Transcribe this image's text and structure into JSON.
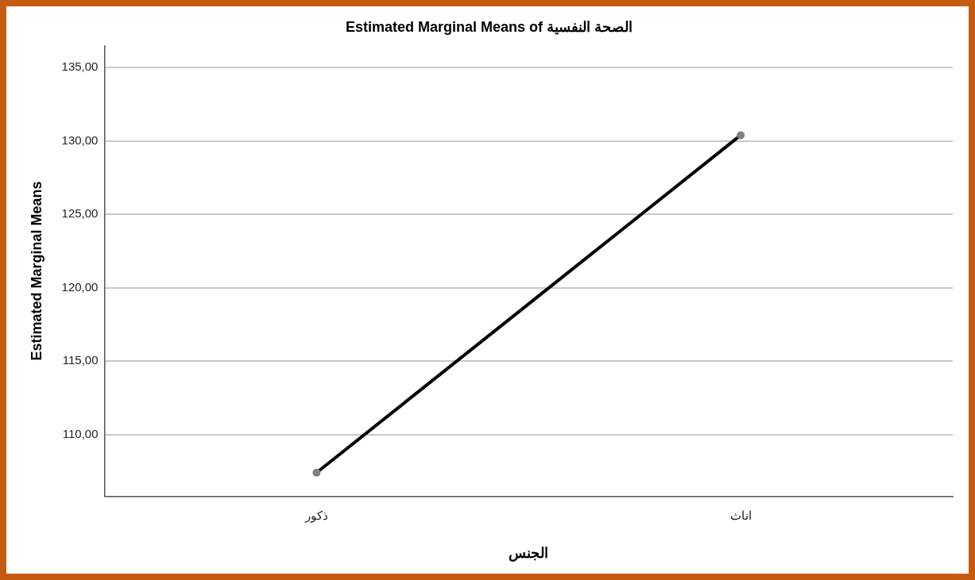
{
  "chart_data": {
    "type": "line",
    "title": "Estimated Marginal Means of الصحة النفسية",
    "xlabel": "الجنس",
    "ylabel": "Estimated Marginal Means",
    "categories": [
      "ذكور",
      "اناث"
    ],
    "series": [
      {
        "color": "#000000",
        "values": [
          107.4,
          130.4
        ]
      }
    ],
    "ylim": [
      105.8,
      136.5
    ],
    "yticks": [
      {
        "value": 110,
        "label": "110,00"
      },
      {
        "value": 115,
        "label": "115,00"
      },
      {
        "value": 120,
        "label": "120,00"
      },
      {
        "value": 125,
        "label": "125,00"
      },
      {
        "value": 130,
        "label": "130,00"
      },
      {
        "value": 135,
        "label": "135,00"
      }
    ],
    "grid": "y",
    "legend": false,
    "marker": "circle",
    "line_style": "solid"
  }
}
